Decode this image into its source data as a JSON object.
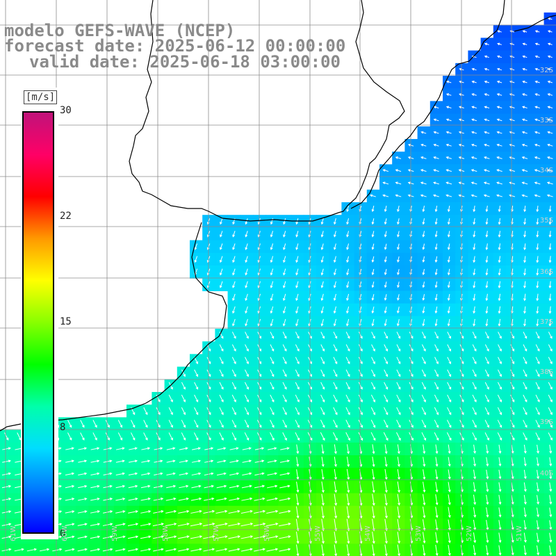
{
  "title": {
    "line1": "modelo GEFS-WAVE (NCEP)",
    "line2": "forecast date: 2025-06-12 00:00:00",
    "line3": "valid date: 2025-06-18 03:00:00"
  },
  "colorbar": {
    "unit": "[m/s]",
    "ticks": [
      "30",
      "22",
      "15",
      "8",
      "0"
    ],
    "tick_values": [
      30,
      22,
      15,
      8,
      0
    ],
    "range": [
      0,
      30
    ],
    "colors": [
      "#0000ff",
      "#0077ff",
      "#00ddff",
      "#00ffaa",
      "#00ff00",
      "#88ff00",
      "#ffff00",
      "#ff9900",
      "#ff0000",
      "#ff0066",
      "#c0137a"
    ]
  },
  "grid": {
    "lat_labels": [
      "32S",
      "33S",
      "34S",
      "35S",
      "36S",
      "37S",
      "38S",
      "39S",
      "40S"
    ],
    "lon_labels": [
      "61W",
      "60W",
      "59W",
      "58W",
      "57W",
      "56W",
      "55W",
      "54W",
      "53W",
      "52W",
      "51W"
    ]
  },
  "colors": {
    "land": "#ffffff",
    "coast": "#000000",
    "gridline": "#8c8c8c",
    "arrow": "#ffffff",
    "title": "#8a8a8a"
  }
}
